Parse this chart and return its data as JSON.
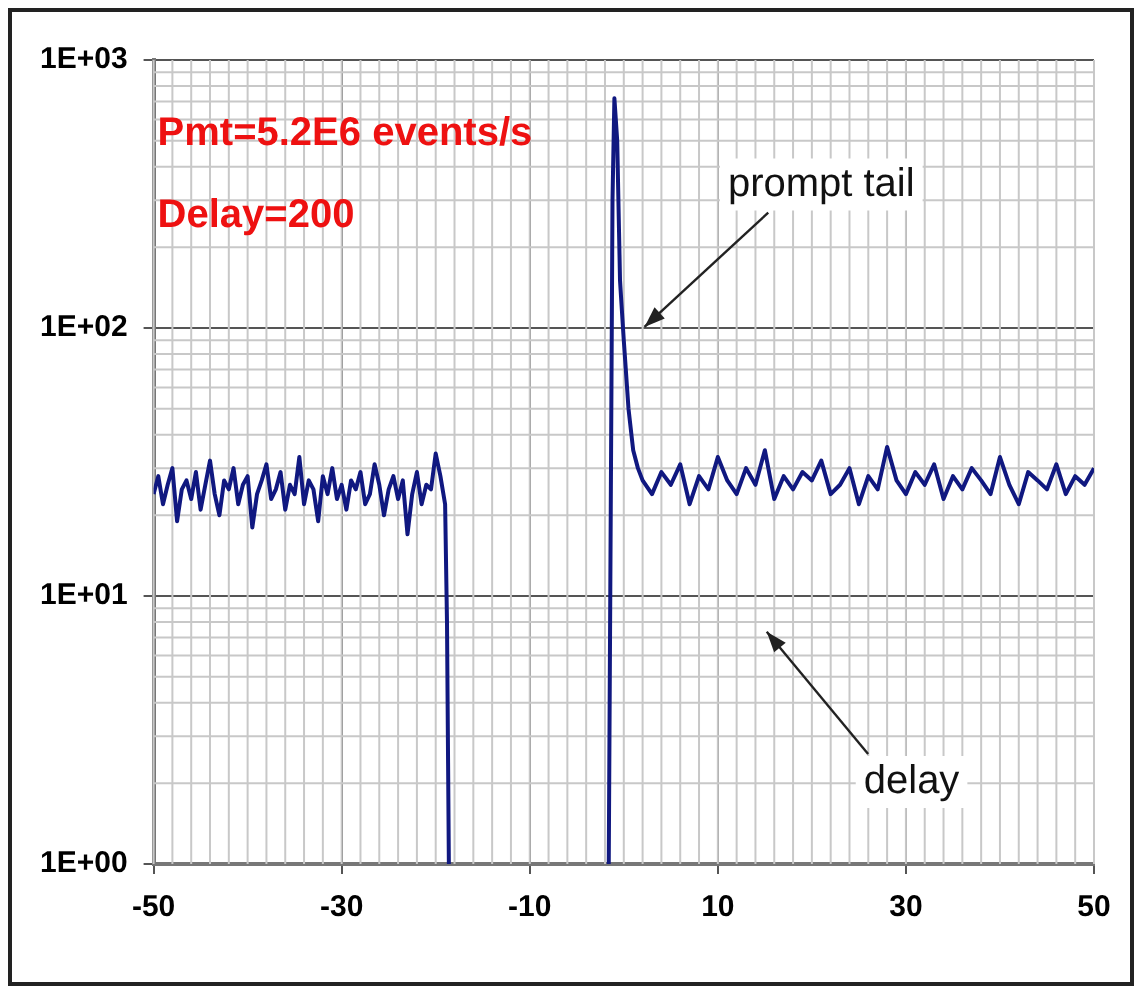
{
  "chart_data": {
    "type": "line",
    "series": [
      {
        "color": "#101880",
        "x": [
          -50,
          -49.5,
          -49,
          -48.5,
          -48,
          -47.5,
          -47,
          -46.5,
          -46,
          -45.5,
          -45,
          -44.5,
          -44,
          -43.5,
          -43,
          -42.5,
          -42,
          -41.5,
          -41,
          -40.5,
          -40,
          -39.5,
          -39,
          -38.5,
          -38,
          -37.5,
          -37,
          -36.5,
          -36,
          -35.5,
          -35,
          -34.5,
          -34,
          -33.5,
          -33,
          -32.5,
          -32,
          -31.5,
          -31,
          -30.5,
          -30,
          -29.5,
          -29,
          -28.5,
          -28,
          -27.5,
          -27,
          -26.5,
          -26,
          -25.5,
          -25,
          -24.5,
          -24,
          -23.5,
          -23,
          -22.5,
          -22,
          -21.5,
          -21,
          -20.5,
          -20,
          -19.5,
          -19,
          -18.8,
          -18.6,
          -10,
          -1.6,
          -1.2,
          -1,
          -0.7,
          -0.4,
          0,
          0.5,
          1,
          1.5,
          2,
          3,
          4,
          5,
          6,
          7,
          8,
          9,
          10,
          11,
          12,
          13,
          14,
          15,
          16,
          17,
          18,
          19,
          20,
          21,
          22,
          23,
          24,
          25,
          26,
          27,
          28,
          29,
          30,
          31,
          32,
          33,
          34,
          35,
          36,
          37,
          38,
          39,
          40,
          41,
          42,
          43,
          44,
          45,
          46,
          47,
          48,
          49,
          50
        ],
        "values": [
          24,
          28,
          22,
          26,
          30,
          19,
          25,
          27,
          23,
          29,
          21,
          26,
          32,
          24,
          20,
          27,
          25,
          30,
          22,
          26,
          28,
          18,
          24,
          27,
          31,
          23,
          25,
          29,
          21,
          26,
          24,
          33,
          22,
          27,
          25,
          19,
          28,
          24,
          30,
          23,
          26,
          21,
          27,
          25,
          29,
          22,
          24,
          31,
          26,
          20,
          25,
          28,
          23,
          27,
          17,
          24,
          29,
          22,
          26,
          25,
          34,
          28,
          22,
          8,
          1,
          null,
          1,
          300,
          720,
          500,
          150,
          90,
          50,
          35,
          30,
          27,
          24,
          29,
          26,
          31,
          22,
          28,
          25,
          33,
          27,
          24,
          30,
          26,
          35,
          23,
          28,
          25,
          29,
          27,
          32,
          24,
          26,
          30,
          22,
          28,
          25,
          36,
          27,
          24,
          29,
          26,
          31,
          23,
          28,
          25,
          30,
          27,
          24,
          33,
          26,
          22,
          29,
          27,
          25,
          31,
          24,
          28,
          26,
          30
        ]
      }
    ],
    "xlim": [
      -50,
      50
    ],
    "xticks": [
      -50,
      -30,
      -10,
      10,
      30,
      50
    ],
    "ylim": [
      1,
      1000
    ],
    "yticks": [
      {
        "value": 1,
        "label": "1E+00"
      },
      {
        "value": 10,
        "label": "1E+01"
      },
      {
        "value": 100,
        "label": "1E+02"
      },
      {
        "value": 1000,
        "label": "1E+03"
      }
    ],
    "log": "y",
    "grid": true,
    "marker": "none",
    "line_style": "solid",
    "legend": false,
    "annotations": [
      "Pmt=5.2E6 events/s",
      "Delay=200",
      "prompt tail",
      "delay"
    ]
  }
}
